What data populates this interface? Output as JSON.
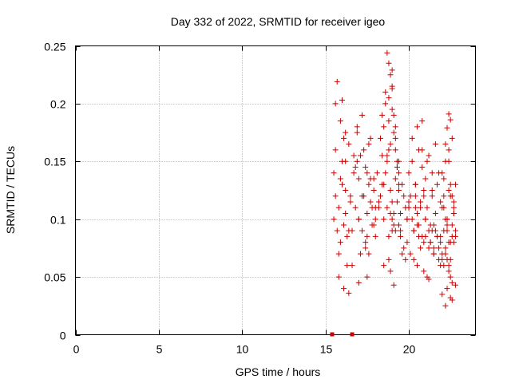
{
  "chart_data": {
    "type": "scatter",
    "title": "Day 332 of 2022, SRMTID for receiver igeo",
    "xlabel": "GPS time / hours",
    "ylabel": "SRMTID / TECUs",
    "xlim": [
      0,
      24
    ],
    "ylim": [
      0,
      0.25
    ],
    "xticks": [
      0,
      5,
      10,
      15,
      20
    ],
    "yticks": [
      0,
      0.05,
      0.1,
      0.15,
      0.2,
      0.25
    ],
    "xtick_labels": [
      "0",
      "5",
      "10",
      "15",
      "20"
    ],
    "ytick_labels": [
      "0",
      "0.05",
      "0.1",
      "0.15",
      "0.2",
      "0.25"
    ],
    "grid": true,
    "marker": "plus",
    "series_color": "#cc0000",
    "baseline_markers_x": [
      15.4,
      16.6
    ],
    "points": {
      "x": [
        15.5,
        15.6,
        15.7,
        15.8,
        15.9,
        16.0,
        16.1,
        16.2,
        16.3,
        16.5,
        15.5,
        15.6,
        15.8,
        16.0,
        16.2,
        16.4,
        15.6,
        15.9,
        16.1,
        16.3,
        15.7,
        16.0,
        16.2,
        15.8,
        16.1,
        16.4,
        16.6,
        16.8,
        17.0,
        17.2,
        17.4,
        17.6,
        17.8,
        18.0,
        16.7,
        16.9,
        17.1,
        17.3,
        17.5,
        17.7,
        17.9,
        16.6,
        16.8,
        17.0,
        17.2,
        17.4,
        17.6,
        17.8,
        18.0,
        16.9,
        17.1,
        17.3,
        17.5,
        17.7,
        17.9,
        17.0,
        17.5,
        17.2,
        17.7,
        18.1,
        18.2,
        18.3,
        18.4,
        18.5,
        18.6,
        18.7,
        18.8,
        18.9,
        19.0,
        19.1,
        19.2,
        19.3,
        19.4,
        19.5,
        19.6,
        19.7,
        19.8,
        19.9,
        18.3,
        18.5,
        18.7,
        18.9,
        19.1,
        19.3,
        19.5,
        19.7,
        19.9,
        18.4,
        18.6,
        18.8,
        19.0,
        19.2,
        19.4,
        19.6,
        19.8,
        18.6,
        18.8,
        19.0,
        19.2,
        19.4,
        18.7,
        18.8,
        18.9,
        19.0,
        19.1,
        19.2,
        19.3,
        19.4,
        18.7,
        19.0,
        19.2,
        18.8,
        19.1,
        18.9,
        19.3,
        18.5,
        18.8,
        18.9,
        19.1,
        19.0,
        20.0,
        20.1,
        20.2,
        20.3,
        20.4,
        20.5,
        20.6,
        20.7,
        20.8,
        20.9,
        21.0,
        21.1,
        21.2,
        21.3,
        21.4,
        21.5,
        21.6,
        21.7,
        21.8,
        21.9,
        20.0,
        20.2,
        20.4,
        20.6,
        20.8,
        21.0,
        21.2,
        21.4,
        21.6,
        21.8,
        20.1,
        20.3,
        20.5,
        20.7,
        20.9,
        21.1,
        21.3,
        21.5,
        21.7,
        21.9,
        20.2,
        20.5,
        20.8,
        21.1,
        21.4,
        21.7,
        20.3,
        20.6,
        20.9,
        21.2,
        21.5,
        21.8,
        20.4,
        20.7,
        21.0,
        21.3,
        21.6,
        21.9,
        20.8,
        21.2,
        22.0,
        22.1,
        22.2,
        22.3,
        22.4,
        22.5,
        22.6,
        22.7,
        22.8,
        22.0,
        22.1,
        22.2,
        22.3,
        22.4,
        22.5,
        22.6,
        22.7,
        22.8,
        22.0,
        22.2,
        22.4,
        22.6,
        22.8,
        22.1,
        22.3,
        22.5,
        22.7,
        22.0,
        22.3,
        22.6,
        22.2,
        22.5,
        22.8,
        22.1,
        22.4,
        22.7,
        22.3,
        22.6,
        22.2,
        22.5,
        22.4,
        22.5,
        22.3,
        22.4,
        22.2,
        22.6,
        22.3,
        22.1,
        22.5,
        22.7,
        16.2,
        16.5,
        17.0,
        17.5,
        18.0,
        18.5,
        19.0,
        19.5,
        20.0,
        20.5,
        21.0,
        21.5,
        22.0,
        16.4,
        16.9,
        17.4,
        17.9,
        18.4,
        18.9,
        19.4,
        19.9,
        20.4,
        20.9,
        21.4,
        21.9,
        22.4,
        15.9,
        16.7,
        17.6,
        18.2
      ],
      "y": [
        0.1,
        0.12,
        0.09,
        0.11,
        0.08,
        0.13,
        0.095,
        0.105,
        0.085,
        0.115,
        0.14,
        0.16,
        0.07,
        0.15,
        0.125,
        0.09,
        0.2,
        0.185,
        0.17,
        0.06,
        0.219,
        0.203,
        0.175,
        0.05,
        0.04,
        0.036,
        0.09,
        0.11,
        0.1,
        0.12,
        0.08,
        0.13,
        0.095,
        0.085,
        0.14,
        0.15,
        0.07,
        0.16,
        0.105,
        0.115,
        0.125,
        0.06,
        0.145,
        0.135,
        0.09,
        0.075,
        0.165,
        0.11,
        0.1,
        0.18,
        0.155,
        0.12,
        0.085,
        0.135,
        0.095,
        0.045,
        0.05,
        0.19,
        0.17,
        0.14,
        0.11,
        0.12,
        0.13,
        0.1,
        0.14,
        0.15,
        0.16,
        0.125,
        0.115,
        0.105,
        0.135,
        0.145,
        0.095,
        0.085,
        0.13,
        0.12,
        0.11,
        0.1,
        0.17,
        0.18,
        0.155,
        0.165,
        0.175,
        0.145,
        0.09,
        0.075,
        0.08,
        0.19,
        0.2,
        0.185,
        0.195,
        0.16,
        0.15,
        0.07,
        0.065,
        0.21,
        0.205,
        0.215,
        0.18,
        0.125,
        0.244,
        0.235,
        0.225,
        0.213,
        0.19,
        0.17,
        0.15,
        0.13,
        0.11,
        0.1,
        0.09,
        0.085,
        0.095,
        0.105,
        0.115,
        0.06,
        0.065,
        0.055,
        0.043,
        0.229,
        0.11,
        0.12,
        0.1,
        0.09,
        0.13,
        0.105,
        0.095,
        0.115,
        0.085,
        0.125,
        0.1,
        0.11,
        0.09,
        0.08,
        0.12,
        0.095,
        0.105,
        0.085,
        0.075,
        0.115,
        0.14,
        0.15,
        0.13,
        0.16,
        0.145,
        0.135,
        0.155,
        0.125,
        0.165,
        0.14,
        0.07,
        0.065,
        0.06,
        0.075,
        0.055,
        0.05,
        0.08,
        0.07,
        0.085,
        0.06,
        0.17,
        0.18,
        0.16,
        0.15,
        0.14,
        0.13,
        0.09,
        0.085,
        0.08,
        0.075,
        0.07,
        0.065,
        0.12,
        0.11,
        0.1,
        0.095,
        0.09,
        0.085,
        0.185,
        0.048,
        0.11,
        0.12,
        0.1,
        0.09,
        0.08,
        0.13,
        0.095,
        0.105,
        0.085,
        0.07,
        0.06,
        0.075,
        0.065,
        0.055,
        0.05,
        0.045,
        0.08,
        0.09,
        0.14,
        0.15,
        0.16,
        0.17,
        0.13,
        0.11,
        0.1,
        0.12,
        0.115,
        0.035,
        0.04,
        0.03,
        0.025,
        0.032,
        0.043,
        0.135,
        0.125,
        0.105,
        0.095,
        0.085,
        0.07,
        0.065,
        0.191,
        0.186,
        0.179,
        0.15,
        0.165,
        0.12,
        0.1,
        0.09,
        0.08,
        0.11,
        0.15,
        0.12,
        0.1,
        0.14,
        0.11,
        0.13,
        0.09,
        0.105,
        0.115,
        0.095,
        0.085,
        0.075,
        0.065,
        0.165,
        0.175,
        0.145,
        0.135,
        0.155,
        0.125,
        0.14,
        0.1,
        0.11,
        0.12,
        0.09,
        0.08,
        0.06,
        0.135,
        0.155,
        0.07,
        0.115
      ]
    }
  }
}
